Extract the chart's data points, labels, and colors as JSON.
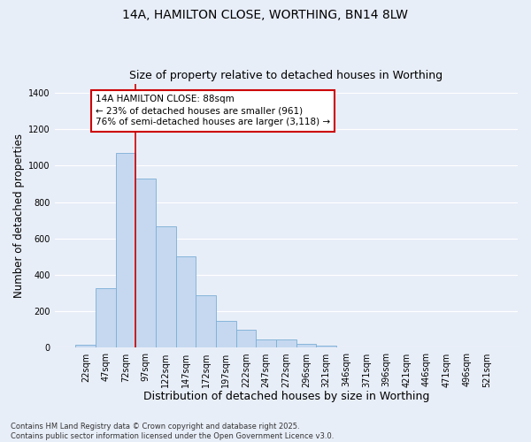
{
  "title": "14A, HAMILTON CLOSE, WORTHING, BN14 8LW",
  "subtitle": "Size of property relative to detached houses in Worthing",
  "xlabel": "Distribution of detached houses by size in Worthing",
  "ylabel": "Number of detached properties",
  "categories": [
    "22sqm",
    "47sqm",
    "72sqm",
    "97sqm",
    "122sqm",
    "147sqm",
    "172sqm",
    "197sqm",
    "222sqm",
    "247sqm",
    "272sqm",
    "296sqm",
    "321sqm",
    "346sqm",
    "371sqm",
    "396sqm",
    "421sqm",
    "446sqm",
    "471sqm",
    "496sqm",
    "521sqm"
  ],
  "values": [
    18,
    328,
    1068,
    930,
    668,
    500,
    290,
    150,
    100,
    45,
    45,
    22,
    12,
    0,
    0,
    0,
    0,
    0,
    0,
    0,
    0
  ],
  "bar_color": "#c5d8f0",
  "bar_edge_color": "#7aaed6",
  "vline_color": "#cc0000",
  "vline_pos": 2.5,
  "annotation_text": "14A HAMILTON CLOSE: 88sqm\n← 23% of detached houses are smaller (961)\n76% of semi-detached houses are larger (3,118) →",
  "annotation_box_color": "#ffffff",
  "annotation_box_edge": "#cc0000",
  "ylim": [
    0,
    1450
  ],
  "yticks": [
    0,
    200,
    400,
    600,
    800,
    1000,
    1200,
    1400
  ],
  "background_color": "#e8eef8",
  "grid_color": "#ffffff",
  "footnote": "Contains HM Land Registry data © Crown copyright and database right 2025.\nContains public sector information licensed under the Open Government Licence v3.0.",
  "title_fontsize": 10,
  "subtitle_fontsize": 9,
  "xlabel_fontsize": 9,
  "ylabel_fontsize": 8.5,
  "tick_fontsize": 7,
  "annotation_fontsize": 7.5,
  "footnote_fontsize": 6
}
